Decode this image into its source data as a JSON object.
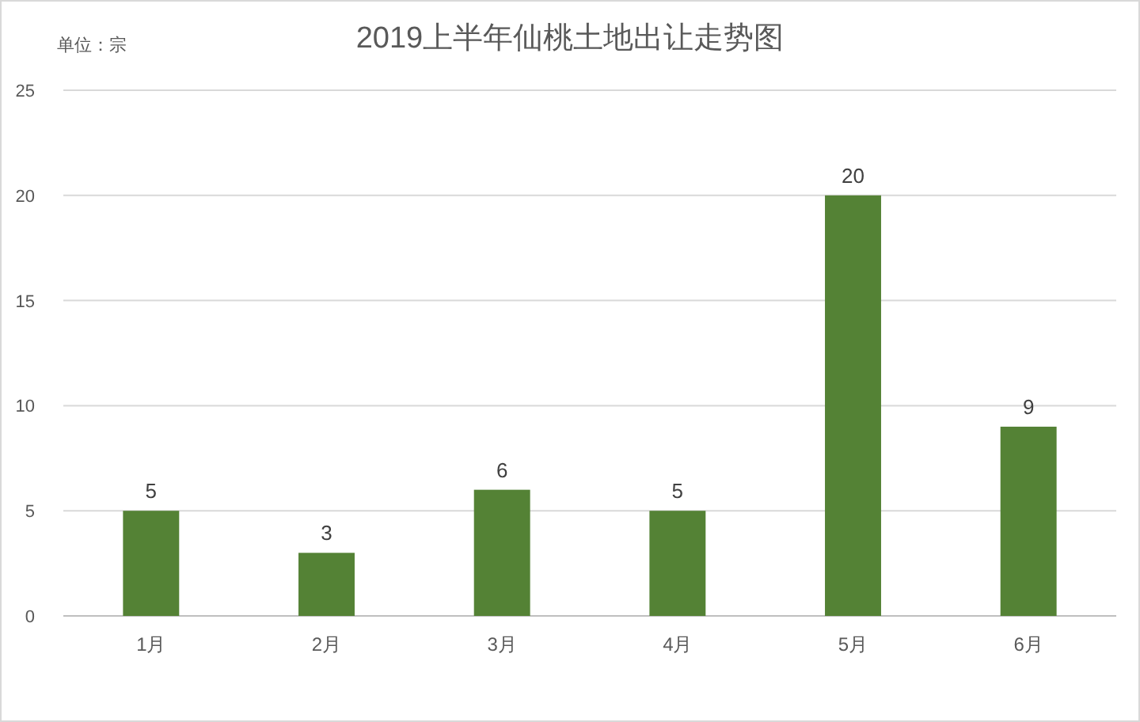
{
  "chart_data": {
    "type": "bar",
    "title": "2019上半年仙桃土地出让走势图",
    "ylabel": "单位：宗",
    "categories": [
      "1月",
      "2月",
      "3月",
      "4月",
      "5月",
      "6月"
    ],
    "values": [
      5,
      3,
      6,
      5,
      20,
      9
    ],
    "color": "#548235",
    "ylim": [
      0,
      25
    ],
    "yticks": [
      0,
      5,
      10,
      15,
      20,
      25
    ],
    "grid": "y",
    "data_labels": true
  }
}
